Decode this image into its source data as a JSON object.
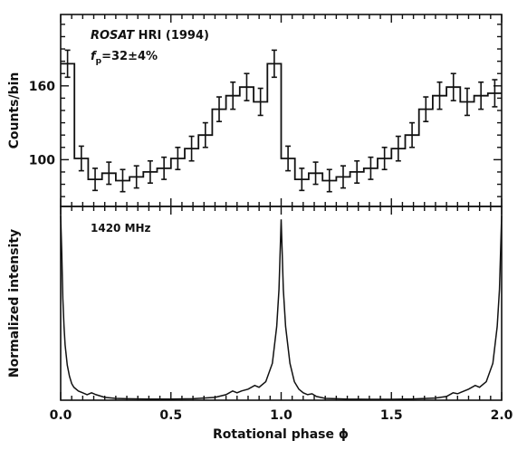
{
  "chart_data": [
    {
      "type": "line",
      "drawstyle": "steps",
      "panel": "top",
      "annotations": [
        "ROSAT HRI (1994)",
        "fp=32±4%"
      ],
      "annotation_parts": {
        "instrument_italic": "ROSAT",
        "instrument_rest": " HRI (1994)",
        "fp_main": "f",
        "fp_sub": "p",
        "fp_value": "=32±4%"
      },
      "xlabel": "",
      "ylabel": "Counts/bin",
      "xlim": [
        0.0,
        2.0
      ],
      "ylim": [
        62,
        218
      ],
      "y_ticks": [
        100,
        160
      ],
      "y_tick_labels": [
        "100",
        "160"
      ],
      "bin_width": 0.0625,
      "x": [
        0.03125,
        0.09375,
        0.15625,
        0.21875,
        0.28125,
        0.34375,
        0.40625,
        0.46875,
        0.53125,
        0.59375,
        0.65625,
        0.71875,
        0.78125,
        0.84375,
        0.90625,
        0.96875,
        1.03125,
        1.09375,
        1.15625,
        1.21875,
        1.28125,
        1.34375,
        1.40625,
        1.46875,
        1.53125,
        1.59375,
        1.65625,
        1.71875,
        1.78125,
        1.84375,
        1.90625,
        1.96875
      ],
      "y": [
        178,
        101,
        84,
        89,
        83,
        86,
        90,
        93,
        101,
        109,
        120,
        141,
        152,
        159,
        147,
        178,
        101,
        84,
        89,
        83,
        86,
        90,
        93,
        101,
        109,
        120,
        141,
        152,
        159,
        147,
        152,
        154
      ],
      "yerr": [
        11,
        10,
        9,
        9,
        9,
        9,
        9,
        9,
        9,
        10,
        10,
        10,
        11,
        11,
        11,
        11,
        10,
        9,
        9,
        9,
        9,
        9,
        9,
        9,
        10,
        10,
        10,
        11,
        11,
        11,
        11,
        11
      ]
    },
    {
      "type": "line",
      "panel": "bottom",
      "annotations": [
        "1420 MHz"
      ],
      "xlabel": "Rotational phase ϕ",
      "ylabel": "Normalized intensity",
      "xlim": [
        0.0,
        2.0
      ],
      "ylim": [
        0,
        1.05
      ],
      "x_ticks": [
        0.0,
        0.5,
        1.0,
        1.5,
        2.0
      ],
      "x_tick_labels": [
        "0.0",
        "0.5",
        "1.0",
        "1.5",
        "2.0"
      ],
      "x": [
        0.0,
        0.005,
        0.01,
        0.015,
        0.02,
        0.03,
        0.04,
        0.05,
        0.06,
        0.08,
        0.1,
        0.12,
        0.14,
        0.16,
        0.2,
        0.25,
        0.3,
        0.4,
        0.5,
        0.6,
        0.7,
        0.75,
        0.78,
        0.8,
        0.82,
        0.85,
        0.88,
        0.9,
        0.93,
        0.96,
        0.98,
        0.99,
        1.0,
        1.01,
        1.02,
        1.04,
        1.06,
        1.08,
        1.1,
        1.12,
        1.14,
        1.16,
        1.2,
        1.25,
        1.3,
        1.4,
        1.5,
        1.6,
        1.7,
        1.75,
        1.78,
        1.8,
        1.82,
        1.85,
        1.88,
        1.9,
        1.93,
        1.96,
        1.98,
        1.99,
        2.0
      ],
      "y": [
        1.0,
        0.8,
        0.55,
        0.4,
        0.3,
        0.19,
        0.13,
        0.09,
        0.07,
        0.05,
        0.04,
        0.03,
        0.04,
        0.03,
        0.015,
        0.01,
        0.008,
        0.006,
        0.006,
        0.008,
        0.015,
        0.03,
        0.05,
        0.04,
        0.05,
        0.06,
        0.08,
        0.07,
        0.1,
        0.2,
        0.4,
        0.6,
        0.98,
        0.6,
        0.4,
        0.2,
        0.1,
        0.06,
        0.04,
        0.03,
        0.035,
        0.02,
        0.01,
        0.008,
        0.006,
        0.005,
        0.005,
        0.007,
        0.012,
        0.02,
        0.04,
        0.035,
        0.045,
        0.06,
        0.08,
        0.07,
        0.1,
        0.2,
        0.4,
        0.6,
        1.0
      ]
    }
  ]
}
